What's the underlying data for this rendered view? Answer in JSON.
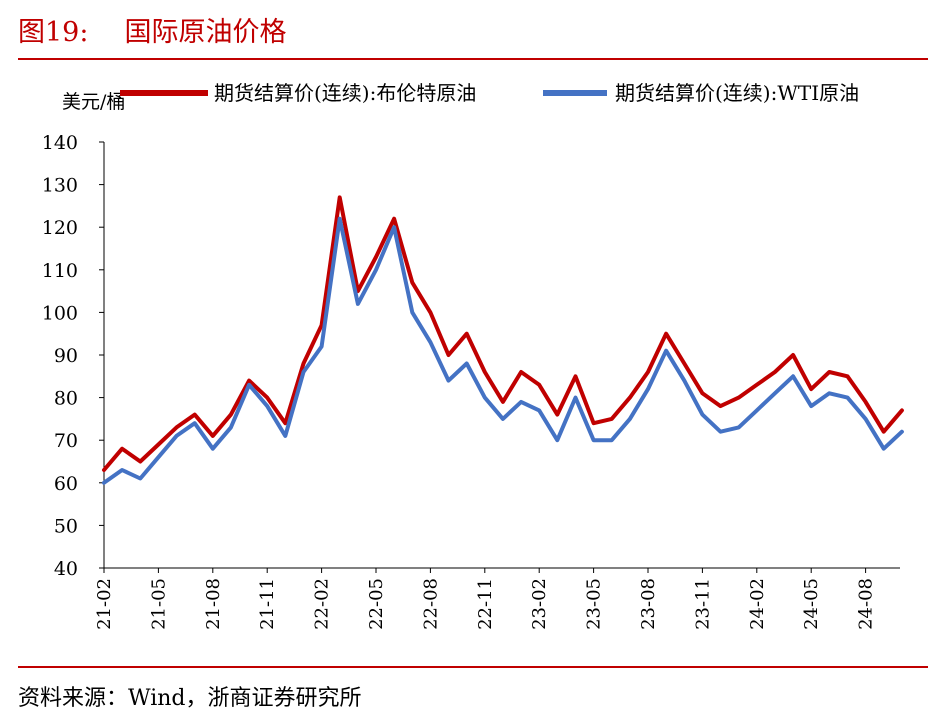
{
  "figure": {
    "number": "图19:",
    "title": "国际原油价格",
    "source": "资料来源：Wind，浙商证券研究所"
  },
  "chart_data": {
    "type": "line",
    "ylabel": "美元/桶",
    "ylim": [
      40,
      140
    ],
    "yticks": [
      "40",
      "50",
      "60",
      "70",
      "80",
      "90",
      "100",
      "110",
      "120",
      "130",
      "140"
    ],
    "xticks": [
      "21-02",
      "21-05",
      "21-08",
      "21-11",
      "22-02",
      "22-05",
      "22-08",
      "22-11",
      "23-02",
      "23-05",
      "23-08",
      "23-11",
      "24-02",
      "24-05",
      "24-08"
    ],
    "x_start": "21-02",
    "x_end": "24-10",
    "grid": false,
    "legend_position": "top",
    "series": [
      {
        "name": "期货结算价(连续):布伦特原油",
        "color": "#c00000",
        "points": [
          [
            "21-02",
            63
          ],
          [
            "21-03",
            68
          ],
          [
            "21-04",
            65
          ],
          [
            "21-05",
            69
          ],
          [
            "21-06",
            73
          ],
          [
            "21-07",
            76
          ],
          [
            "21-08",
            71
          ],
          [
            "21-09",
            76
          ],
          [
            "21-10",
            84
          ],
          [
            "21-11",
            80
          ],
          [
            "21-12",
            74
          ],
          [
            "22-01",
            88
          ],
          [
            "22-02",
            97
          ],
          [
            "22-03",
            127
          ],
          [
            "22-04",
            105
          ],
          [
            "22-05",
            113
          ],
          [
            "22-06",
            122
          ],
          [
            "22-07",
            107
          ],
          [
            "22-08",
            100
          ],
          [
            "22-09",
            90
          ],
          [
            "22-10",
            95
          ],
          [
            "22-11",
            86
          ],
          [
            "22-12",
            79
          ],
          [
            "23-01",
            86
          ],
          [
            "23-02",
            83
          ],
          [
            "23-03",
            76
          ],
          [
            "23-04",
            85
          ],
          [
            "23-05",
            74
          ],
          [
            "23-06",
            75
          ],
          [
            "23-07",
            80
          ],
          [
            "23-08",
            86
          ],
          [
            "23-09",
            95
          ],
          [
            "23-10",
            88
          ],
          [
            "23-11",
            81
          ],
          [
            "23-12",
            78
          ],
          [
            "24-01",
            80
          ],
          [
            "24-02",
            83
          ],
          [
            "24-03",
            86
          ],
          [
            "24-04",
            90
          ],
          [
            "24-05",
            82
          ],
          [
            "24-06",
            86
          ],
          [
            "24-07",
            85
          ],
          [
            "24-08",
            79
          ],
          [
            "24-09",
            72
          ],
          [
            "24-10",
            77
          ]
        ]
      },
      {
        "name": "期货结算价(连续):WTI原油",
        "color": "#4472c4",
        "points": [
          [
            "21-02",
            60
          ],
          [
            "21-03",
            63
          ],
          [
            "21-04",
            61
          ],
          [
            "21-05",
            66
          ],
          [
            "21-06",
            71
          ],
          [
            "21-07",
            74
          ],
          [
            "21-08",
            68
          ],
          [
            "21-09",
            73
          ],
          [
            "21-10",
            83
          ],
          [
            "21-11",
            78
          ],
          [
            "21-12",
            71
          ],
          [
            "22-01",
            86
          ],
          [
            "22-02",
            92
          ],
          [
            "22-03",
            122
          ],
          [
            "22-04",
            102
          ],
          [
            "22-05",
            110
          ],
          [
            "22-06",
            120
          ],
          [
            "22-07",
            100
          ],
          [
            "22-08",
            93
          ],
          [
            "22-09",
            84
          ],
          [
            "22-10",
            88
          ],
          [
            "22-11",
            80
          ],
          [
            "22-12",
            75
          ],
          [
            "23-01",
            79
          ],
          [
            "23-02",
            77
          ],
          [
            "23-03",
            70
          ],
          [
            "23-04",
            80
          ],
          [
            "23-05",
            70
          ],
          [
            "23-06",
            70
          ],
          [
            "23-07",
            75
          ],
          [
            "23-08",
            82
          ],
          [
            "23-09",
            91
          ],
          [
            "23-10",
            84
          ],
          [
            "23-11",
            76
          ],
          [
            "23-12",
            72
          ],
          [
            "24-01",
            73
          ],
          [
            "24-02",
            77
          ],
          [
            "24-03",
            81
          ],
          [
            "24-04",
            85
          ],
          [
            "24-05",
            78
          ],
          [
            "24-06",
            81
          ],
          [
            "24-07",
            80
          ],
          [
            "24-08",
            75
          ],
          [
            "24-09",
            68
          ],
          [
            "24-10",
            72
          ]
        ]
      }
    ]
  }
}
